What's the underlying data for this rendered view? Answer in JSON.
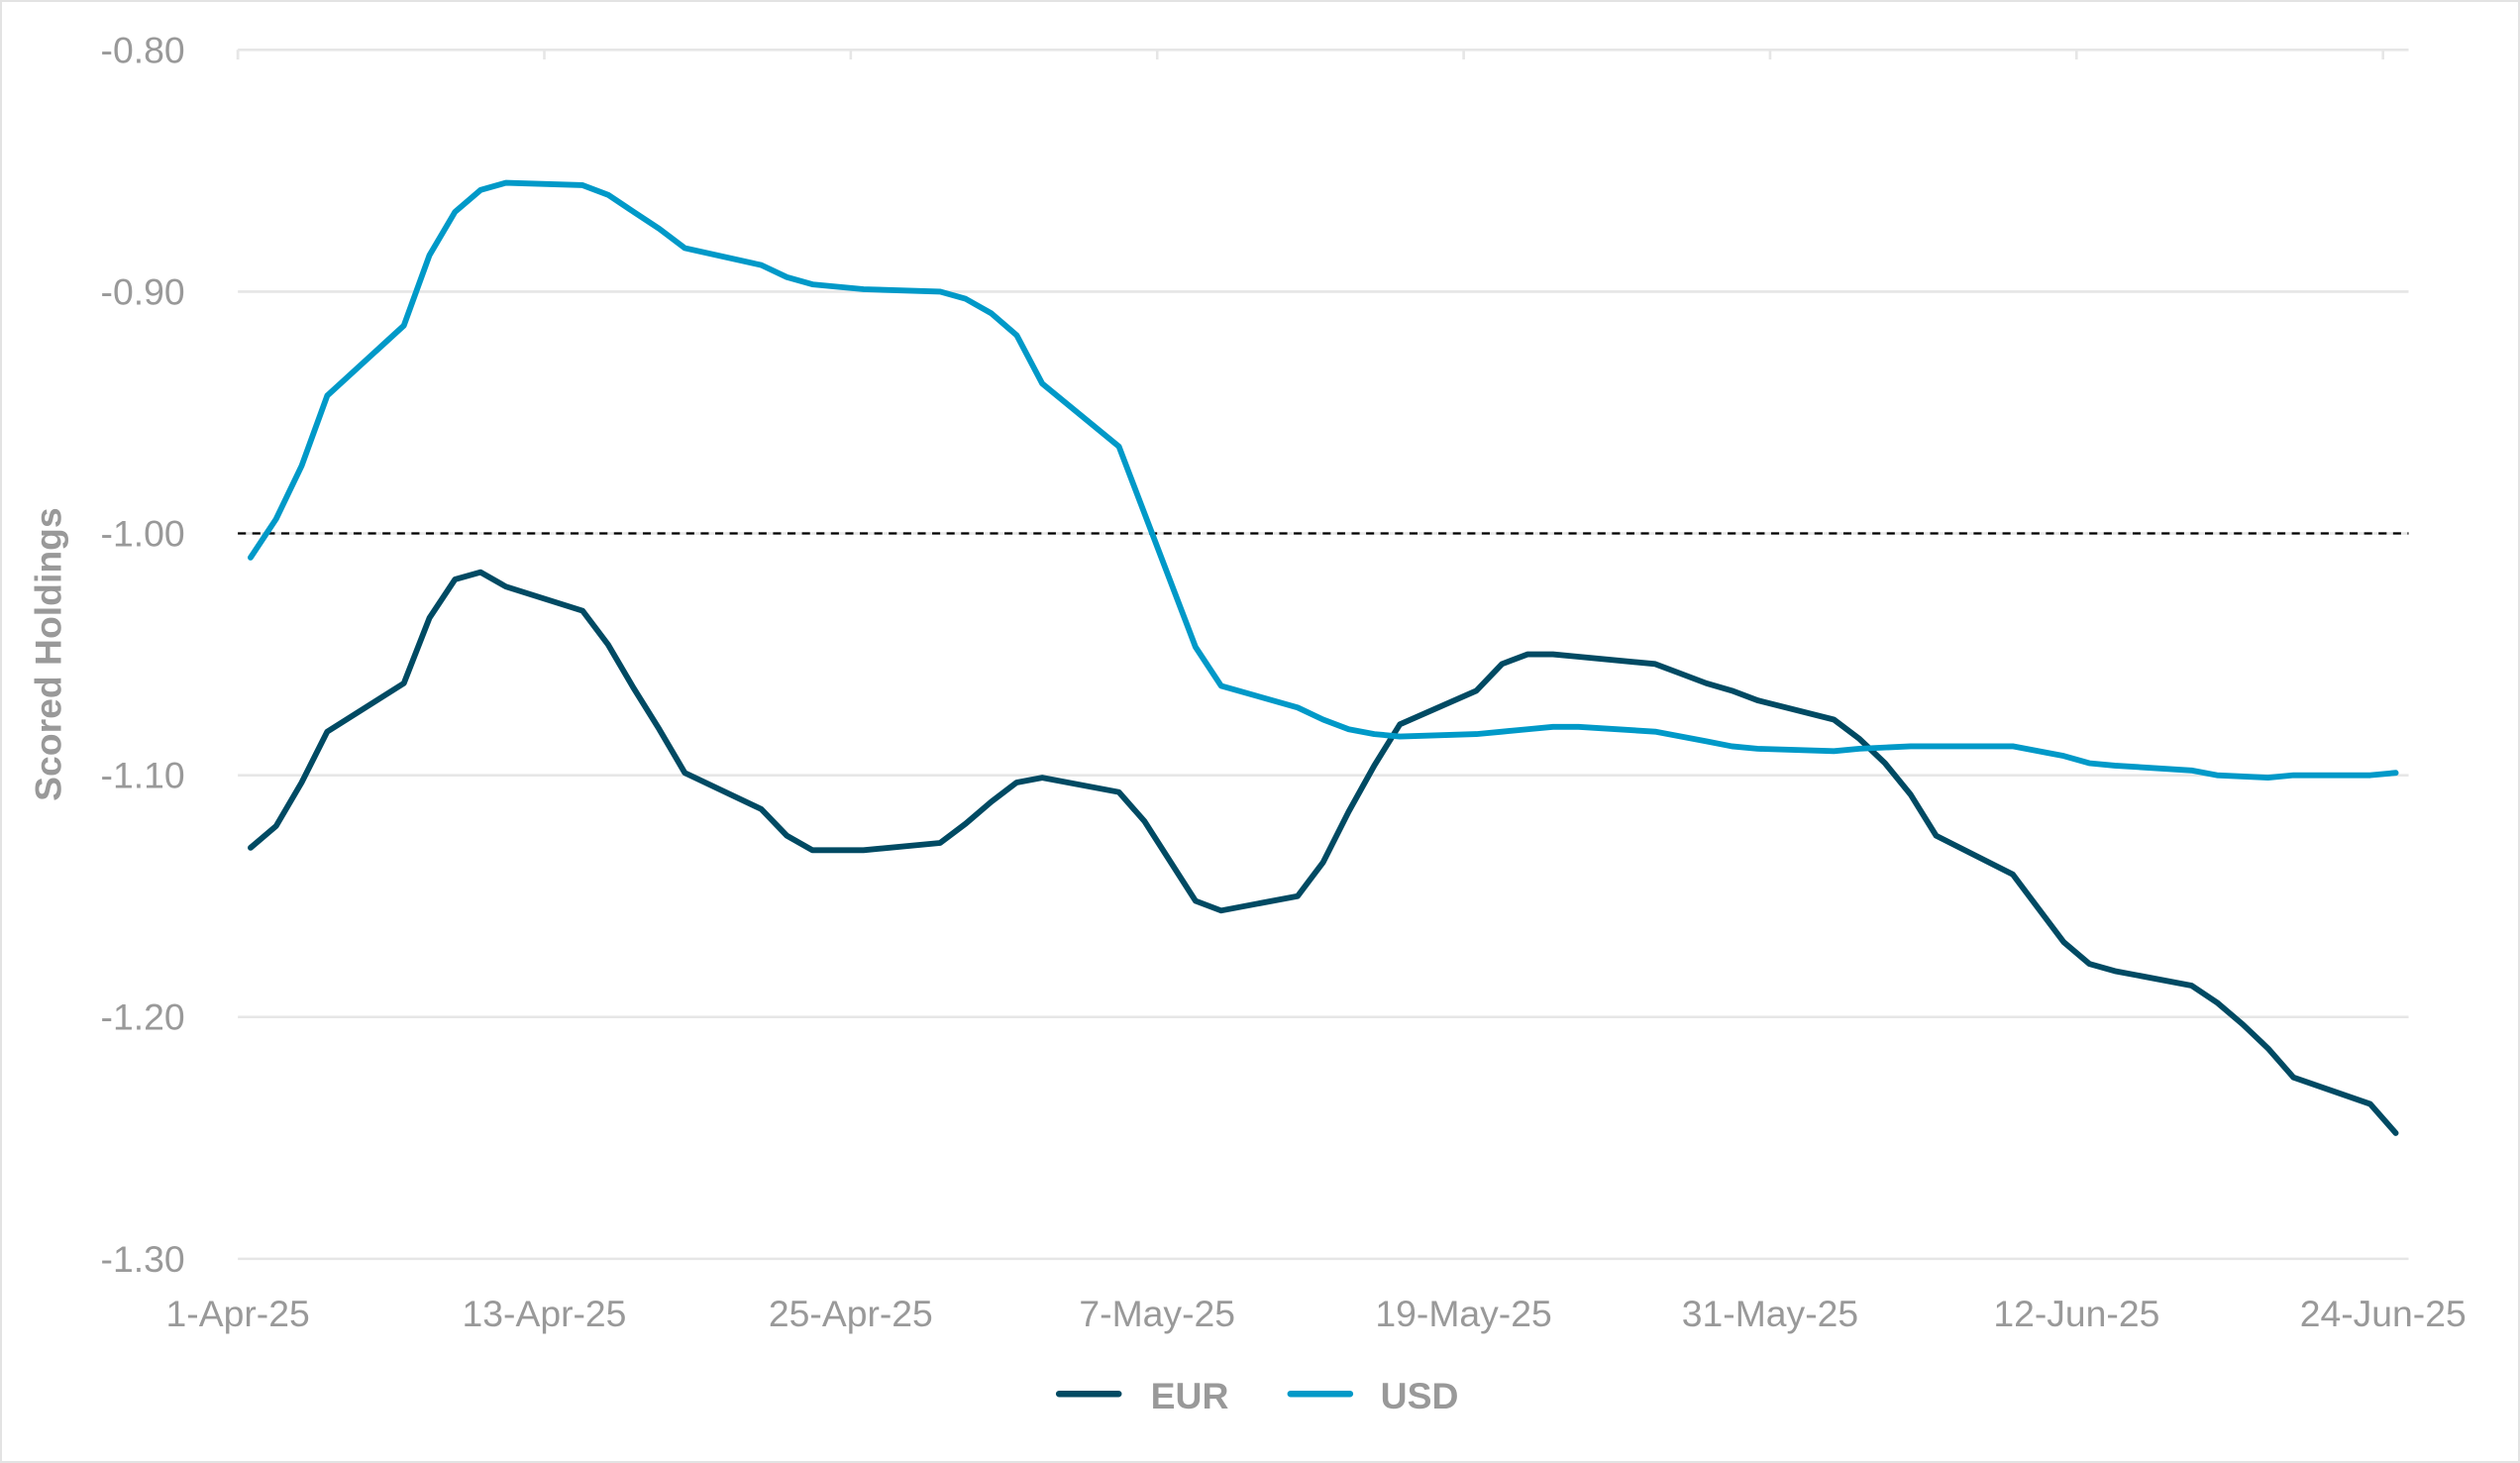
{
  "chart_data": {
    "type": "line",
    "title": "",
    "xlabel": "",
    "ylabel": "Scored Holdings",
    "ylim": [
      -1.3,
      -0.8
    ],
    "yticks": [
      "-0.80",
      "-0.90",
      "-1.00",
      "-1.10",
      "-1.20",
      "-1.30"
    ],
    "xtick_labels": [
      "1-Apr-25",
      "13-Apr-25",
      "25-Apr-25",
      "7-May-25",
      "19-May-25",
      "31-May-25",
      "12-Jun-25",
      "24-Jun-25"
    ],
    "xtick_day_offsets": [
      0,
      12,
      24,
      36,
      48,
      60,
      72,
      84
    ],
    "x_range_days": [
      0,
      85
    ],
    "grid": "horizontal",
    "reference_line": {
      "value": -1.0,
      "style": "dashed",
      "color": "#000000"
    },
    "legend": {
      "position": "bottom",
      "entries": [
        "EUR",
        "USD"
      ]
    },
    "series": [
      {
        "name": "EUR",
        "color": "#004a63",
        "day_offsets": [
          0.5,
          1.5,
          2.5,
          3.5,
          6.5,
          7.5,
          8.5,
          9.5,
          10.5,
          13.5,
          14.5,
          15.5,
          16.5,
          17.5,
          20.5,
          21.5,
          22.5,
          24.5,
          27.5,
          28.5,
          29.5,
          30.5,
          31.5,
          34.5,
          35.5,
          37.5,
          38.5,
          41.5,
          42.5,
          43.5,
          44.5,
          45.5,
          48.5,
          49.5,
          50.5,
          51.5,
          52.5,
          55.5,
          56.5,
          57.5,
          58.5,
          59.5,
          62.5,
          63.5,
          64.5,
          65.5,
          66.5,
          69.5,
          70.5,
          71.5,
          72.5,
          73.5,
          76.5,
          77.5,
          78.5,
          79.5,
          80.5,
          83.5,
          84.5
        ],
        "values": [
          -1.13,
          -1.121,
          -1.103,
          -1.082,
          -1.062,
          -1.035,
          -1.019,
          -1.016,
          -1.022,
          -1.032,
          -1.046,
          -1.064,
          -1.081,
          -1.099,
          -1.114,
          -1.125,
          -1.131,
          -1.131,
          -1.128,
          -1.12,
          -1.111,
          -1.103,
          -1.101,
          -1.107,
          -1.119,
          -1.152,
          -1.156,
          -1.15,
          -1.136,
          -1.115,
          -1.096,
          -1.079,
          -1.065,
          -1.054,
          -1.05,
          -1.05,
          -1.051,
          -1.054,
          -1.058,
          -1.062,
          -1.065,
          -1.069,
          -1.077,
          -1.085,
          -1.095,
          -1.108,
          -1.125,
          -1.141,
          -1.155,
          -1.169,
          -1.178,
          -1.181,
          -1.187,
          -1.194,
          -1.203,
          -1.213,
          -1.225,
          -1.236,
          -1.248
        ]
      },
      {
        "name": "USD",
        "color": "#0099c8",
        "day_offsets": [
          0.5,
          1.5,
          2.5,
          3.5,
          6.5,
          7.5,
          8.5,
          9.5,
          10.5,
          13.5,
          14.5,
          15.5,
          16.5,
          17.5,
          20.5,
          21.5,
          22.5,
          24.5,
          27.5,
          28.5,
          29.5,
          30.5,
          31.5,
          34.5,
          37.5,
          38.5,
          41.5,
          42.5,
          43.5,
          44.5,
          45.5,
          48.5,
          49.5,
          50.5,
          51.5,
          52.5,
          55.5,
          56.5,
          57.5,
          58.5,
          59.5,
          62.5,
          63.5,
          65.5,
          66.5,
          69.5,
          70.5,
          71.5,
          72.5,
          73.5,
          76.5,
          77.5,
          79.5,
          80.5,
          83.5,
          84.5
        ],
        "values": [
          -1.01,
          -0.994,
          -0.972,
          -0.943,
          -0.914,
          -0.885,
          -0.867,
          -0.858,
          -0.855,
          -0.856,
          -0.86,
          -0.867,
          -0.874,
          -0.882,
          -0.889,
          -0.894,
          -0.897,
          -0.899,
          -0.9,
          -0.903,
          -0.909,
          -0.918,
          -0.938,
          -0.964,
          -1.047,
          -1.063,
          -1.072,
          -1.077,
          -1.081,
          -1.083,
          -1.084,
          -1.083,
          -1.082,
          -1.081,
          -1.08,
          -1.08,
          -1.082,
          -1.084,
          -1.086,
          -1.088,
          -1.089,
          -1.09,
          -1.089,
          -1.088,
          -1.088,
          -1.088,
          -1.09,
          -1.092,
          -1.095,
          -1.096,
          -1.098,
          -1.1,
          -1.101,
          -1.1,
          -1.1,
          -1.099
        ]
      }
    ]
  }
}
